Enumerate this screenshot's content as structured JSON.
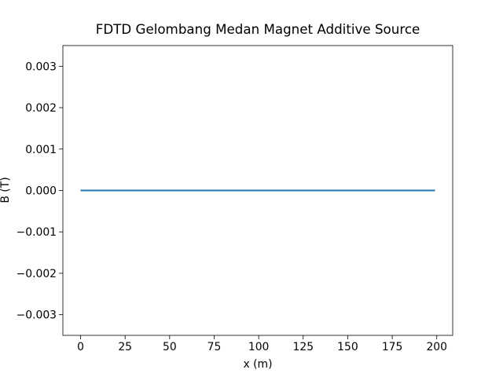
{
  "chart_data": {
    "type": "line",
    "title": "FDTD Gelombang Medan Magnet Additive Source",
    "xlabel": "x (m)",
    "ylabel": "B (T)",
    "x": [
      0,
      1,
      2,
      3,
      4,
      5,
      6,
      7,
      8,
      9,
      10,
      11,
      12,
      13,
      14,
      15,
      16,
      17,
      18,
      19,
      20,
      21,
      22,
      23,
      24,
      25,
      26,
      27,
      28,
      29,
      30,
      31,
      32,
      33,
      34,
      35,
      36,
      37,
      38,
      39,
      40,
      41,
      42,
      43,
      44,
      45,
      46,
      47,
      48,
      49,
      50,
      51,
      52,
      53,
      54,
      55,
      56,
      57,
      58,
      59,
      60,
      61,
      62,
      63,
      64,
      65,
      66,
      67,
      68,
      69,
      70,
      71,
      72,
      73,
      74,
      75,
      76,
      77,
      78,
      79,
      80,
      81,
      82,
      83,
      84,
      85,
      86,
      87,
      88,
      89,
      90,
      91,
      92,
      93,
      94,
      95,
      96,
      97,
      98,
      99,
      100,
      101,
      102,
      103,
      104,
      105,
      106,
      107,
      108,
      109,
      110,
      111,
      112,
      113,
      114,
      115,
      116,
      117,
      118,
      119,
      120,
      121,
      122,
      123,
      124,
      125,
      126,
      127,
      128,
      129,
      130,
      131,
      132,
      133,
      134,
      135,
      136,
      137,
      138,
      139,
      140,
      141,
      142,
      143,
      144,
      145,
      146,
      147,
      148,
      149,
      150,
      151,
      152,
      153,
      154,
      155,
      156,
      157,
      158,
      159,
      160,
      161,
      162,
      163,
      164,
      165,
      166,
      167,
      168,
      169,
      170,
      171,
      172,
      173,
      174,
      175,
      176,
      177,
      178,
      179,
      180,
      181,
      182,
      183,
      184,
      185,
      186,
      187,
      188,
      189,
      190,
      191,
      192,
      193,
      194,
      195,
      196,
      197,
      198,
      199
    ],
    "values": [
      0,
      0,
      0,
      0,
      0,
      0,
      0,
      0,
      0,
      0,
      0,
      0,
      0,
      0,
      0,
      0,
      0,
      0,
      0,
      0,
      0,
      0,
      0,
      0,
      0,
      0,
      0,
      0,
      0,
      0,
      0,
      0,
      0,
      0,
      0,
      0,
      0,
      0,
      0,
      0,
      0,
      0,
      0,
      0,
      0,
      0,
      0,
      0,
      0,
      0,
      0,
      0,
      0,
      0,
      0,
      0,
      0,
      0,
      0,
      0,
      0,
      0,
      0,
      0,
      0,
      0,
      0,
      0,
      0,
      0,
      0,
      0,
      0,
      0,
      0,
      0,
      0,
      0,
      0,
      0,
      0,
      0,
      0,
      0,
      0,
      0,
      0,
      0,
      0,
      0,
      0,
      0,
      0,
      0,
      0,
      0,
      0,
      0,
      0,
      0,
      0,
      0,
      0,
      0,
      0,
      0,
      0,
      0,
      0,
      0,
      0,
      0,
      0,
      0,
      0,
      0,
      0,
      0,
      0,
      0,
      0,
      0,
      0,
      0,
      0,
      0,
      0,
      0,
      0,
      0,
      0,
      0,
      0,
      0,
      0,
      0,
      0,
      0,
      0,
      0,
      0,
      0,
      0,
      0,
      0,
      0,
      0,
      0,
      0,
      0,
      0,
      0,
      0,
      0,
      0,
      0,
      0,
      0,
      0,
      0,
      0,
      0,
      0,
      0,
      0,
      0,
      0,
      0,
      0,
      0,
      0,
      0,
      0,
      0,
      0,
      0,
      0,
      0,
      0,
      0,
      0,
      0,
      0,
      0,
      0,
      0,
      0,
      0,
      0,
      0,
      0,
      0,
      0,
      0,
      0,
      0,
      0,
      0,
      0,
      0
    ],
    "color": "#1f77b4",
    "xlim": [
      -9.95,
      208.95
    ],
    "xticks": [
      0,
      25,
      50,
      75,
      100,
      125,
      150,
      175,
      200
    ],
    "ylim": [
      -0.0035,
      0.0035
    ],
    "yticks": [
      {
        "value": -0.003,
        "label": "−0.003"
      },
      {
        "value": -0.002,
        "label": "−0.002"
      },
      {
        "value": -0.001,
        "label": "−0.001"
      },
      {
        "value": 0,
        "label": "0.000"
      },
      0.001,
      0.002,
      0.003
    ]
  }
}
